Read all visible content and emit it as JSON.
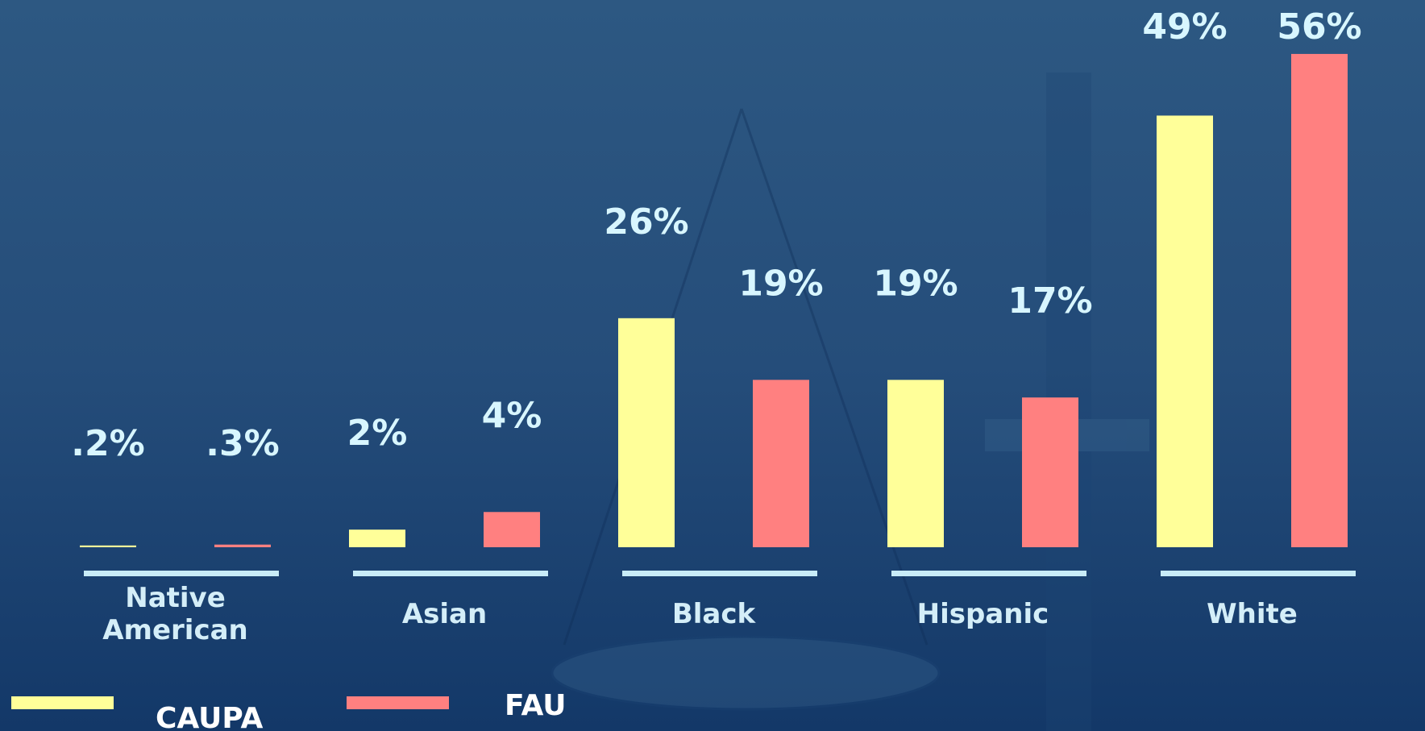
{
  "chart_data": {
    "type": "bar",
    "categories": [
      "Native American",
      "Asian",
      "Black",
      "Hispanic",
      "White"
    ],
    "series": [
      {
        "name": "CAUPA",
        "color": "#ffff99",
        "values": [
          0.2,
          2,
          26,
          19,
          49
        ],
        "value_labels": [
          ".2%",
          "2%",
          "26%",
          "19%",
          "49%"
        ]
      },
      {
        "name": "FAU",
        "color": "#ff8080",
        "values": [
          0.3,
          4,
          19,
          17,
          56
        ],
        "value_labels": [
          ".3%",
          "4%",
          "19%",
          "17%",
          "56%"
        ]
      }
    ],
    "legend": "bottom-left"
  }
}
